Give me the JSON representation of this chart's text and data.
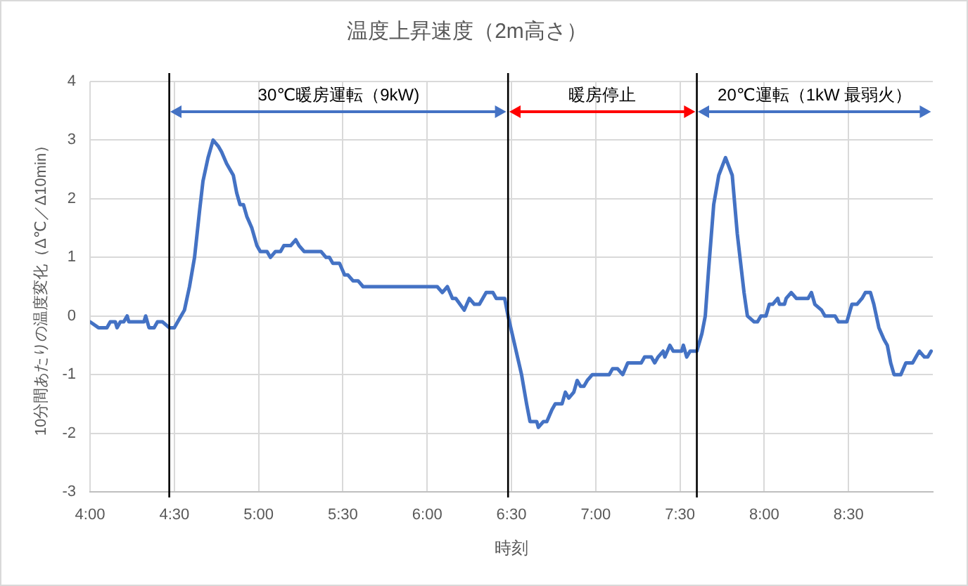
{
  "chart_data": {
    "type": "line",
    "title": "温度上昇速度（2m高さ）",
    "xlabel": "時刻",
    "ylabel": "10分間あたりの温度変化（Δ℃／Δ10min）",
    "x": [
      4.0,
      4.05,
      4.1,
      4.12,
      4.15,
      4.16,
      4.18,
      4.2,
      4.22,
      4.23,
      4.32,
      4.33,
      4.35,
      4.38,
      4.4,
      4.43,
      4.47,
      4.5,
      4.52,
      4.56,
      4.59,
      4.62,
      4.65,
      4.67,
      4.7,
      4.73,
      4.76,
      4.78,
      4.81,
      4.85,
      4.87,
      4.89,
      4.91,
      4.93,
      4.96,
      4.99,
      5.01,
      5.05,
      5.07,
      5.1,
      5.13,
      5.15,
      5.19,
      5.22,
      5.24,
      5.27,
      5.37,
      5.4,
      5.42,
      5.44,
      5.48,
      5.51,
      5.53,
      5.56,
      5.59,
      5.62,
      6.06,
      6.09,
      6.12,
      6.15,
      6.17,
      6.22,
      6.25,
      6.28,
      6.31,
      6.35,
      6.39,
      6.41,
      6.46,
      6.48,
      6.52,
      6.56,
      6.59,
      6.61,
      6.65,
      6.66,
      6.69,
      6.71,
      6.74,
      6.76,
      6.8,
      6.82,
      6.84,
      6.87,
      6.89,
      6.91,
      6.93,
      6.95,
      6.98,
      7.08,
      7.1,
      7.13,
      7.16,
      7.19,
      7.27,
      7.29,
      7.33,
      7.35,
      7.37,
      7.4,
      7.41,
      7.44,
      7.46,
      7.51,
      7.52,
      7.54,
      7.56,
      7.6,
      7.63,
      7.65,
      7.67,
      7.7,
      7.73,
      7.77,
      7.81,
      7.84,
      7.88,
      7.9,
      7.94,
      7.96,
      7.98,
      8.01,
      8.03,
      8.05,
      8.08,
      8.09,
      8.12,
      8.13,
      8.16,
      8.19,
      8.26,
      8.28,
      8.3,
      8.34,
      8.36,
      8.42,
      8.44,
      8.49,
      8.52,
      8.55,
      8.58,
      8.6,
      8.63,
      8.65,
      8.68,
      8.71,
      8.73,
      8.75,
      8.77,
      8.81,
      8.84,
      8.88,
      8.9,
      8.92,
      8.95,
      8.97,
      8.99
    ],
    "series": [
      {
        "color": "#4472c4",
        "values": [
          -0.1,
          -0.2,
          -0.2,
          -0.1,
          -0.1,
          -0.2,
          -0.1,
          -0.1,
          0.0,
          -0.1,
          -0.1,
          0.0,
          -0.2,
          -0.2,
          -0.1,
          -0.1,
          -0.2,
          -0.2,
          -0.1,
          0.1,
          0.5,
          1.0,
          1.8,
          2.3,
          2.7,
          3.0,
          2.9,
          2.8,
          2.6,
          2.4,
          2.1,
          1.9,
          1.9,
          1.7,
          1.5,
          1.2,
          1.1,
          1.1,
          1.0,
          1.1,
          1.1,
          1.2,
          1.2,
          1.3,
          1.2,
          1.1,
          1.1,
          1.0,
          1.0,
          0.9,
          0.9,
          0.7,
          0.7,
          0.6,
          0.6,
          0.5,
          0.5,
          0.4,
          0.5,
          0.3,
          0.3,
          0.1,
          0.3,
          0.2,
          0.2,
          0.4,
          0.4,
          0.3,
          0.3,
          0.0,
          -0.5,
          -1.0,
          -1.5,
          -1.8,
          -1.8,
          -1.9,
          -1.8,
          -1.8,
          -1.6,
          -1.5,
          -1.5,
          -1.3,
          -1.4,
          -1.3,
          -1.1,
          -1.2,
          -1.2,
          -1.1,
          -1.0,
          -1.0,
          -0.9,
          -0.9,
          -1.0,
          -0.8,
          -0.8,
          -0.7,
          -0.7,
          -0.8,
          -0.7,
          -0.6,
          -0.7,
          -0.5,
          -0.6,
          -0.6,
          -0.5,
          -0.7,
          -0.6,
          -0.6,
          -0.3,
          0.0,
          0.8,
          1.9,
          2.4,
          2.7,
          2.4,
          1.4,
          0.4,
          0.0,
          -0.1,
          -0.1,
          0.0,
          0.0,
          0.2,
          0.2,
          0.3,
          0.2,
          0.2,
          0.3,
          0.4,
          0.3,
          0.3,
          0.4,
          0.2,
          0.1,
          0.0,
          0.0,
          -0.1,
          -0.1,
          0.2,
          0.2,
          0.3,
          0.4,
          0.4,
          0.2,
          -0.2,
          -0.4,
          -0.5,
          -0.8,
          -1.0,
          -1.0,
          -0.8,
          -0.8,
          -0.7,
          -0.6,
          -0.7,
          -0.7,
          -0.6
        ]
      }
    ],
    "xlim": [
      4,
      9
    ],
    "xticks": [
      {
        "value": 4,
        "label": "4:00"
      },
      {
        "value": 4.5,
        "label": "4:30"
      },
      {
        "value": 5,
        "label": "5:00"
      },
      {
        "value": 5.5,
        "label": "5:30"
      },
      {
        "value": 6,
        "label": "6:00"
      },
      {
        "value": 6.5,
        "label": "6:30"
      },
      {
        "value": 7,
        "label": "7:00"
      },
      {
        "value": 7.5,
        "label": "7:30"
      },
      {
        "value": 8,
        "label": "8:00"
      },
      {
        "value": 8.5,
        "label": "8:30"
      }
    ],
    "ylim": [
      -3,
      4
    ],
    "yticks": [
      -3,
      -2,
      -1,
      0,
      1,
      2,
      3,
      4
    ],
    "grid": true,
    "ref_lines": [
      {
        "axis": "x",
        "value": 4.47,
        "color": "#000000"
      },
      {
        "axis": "x",
        "value": 6.48,
        "color": "#000000"
      },
      {
        "axis": "x",
        "value": 7.6,
        "color": "#000000"
      }
    ],
    "annotations": [
      "30℃暖房運転（9kW)",
      "暖房停止",
      "20℃運転（1kW 最弱火）"
    ]
  }
}
